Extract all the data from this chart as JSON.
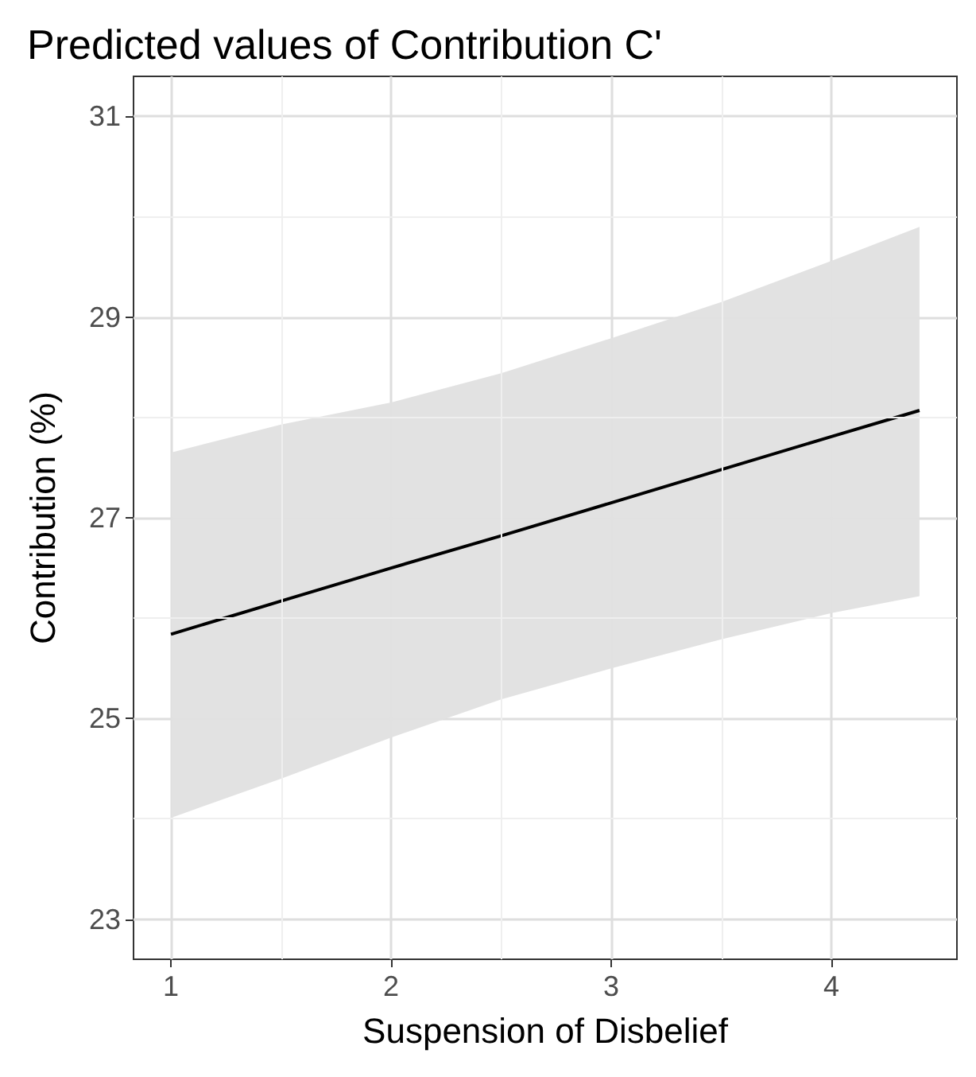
{
  "chart_data": {
    "type": "line",
    "title": "Predicted values of Contribution C'",
    "xlabel": "Suspension of Disbelief",
    "ylabel": "Contribution (%)",
    "x": [
      1,
      1.5,
      2,
      2.5,
      3,
      3.5,
      4,
      4.4
    ],
    "series": [
      {
        "color": "#000000",
        "values": [
          25.84,
          26.17,
          26.5,
          26.82,
          27.15,
          27.48,
          27.81,
          28.07
        ],
        "lower": [
          24.01,
          24.4,
          24.81,
          25.19,
          25.5,
          25.79,
          26.05,
          26.22
        ],
        "upper": [
          27.65,
          27.93,
          28.15,
          28.44,
          28.79,
          29.15,
          29.56,
          29.9
        ]
      }
    ],
    "xlim": [
      0.83,
      4.57
    ],
    "xticks": [
      1,
      2,
      3,
      4
    ],
    "ylim": [
      22.6,
      31.4
    ],
    "yticks": [
      23,
      25,
      27,
      29,
      31
    ],
    "grid": true,
    "marker": "none",
    "line_style": "solid"
  }
}
